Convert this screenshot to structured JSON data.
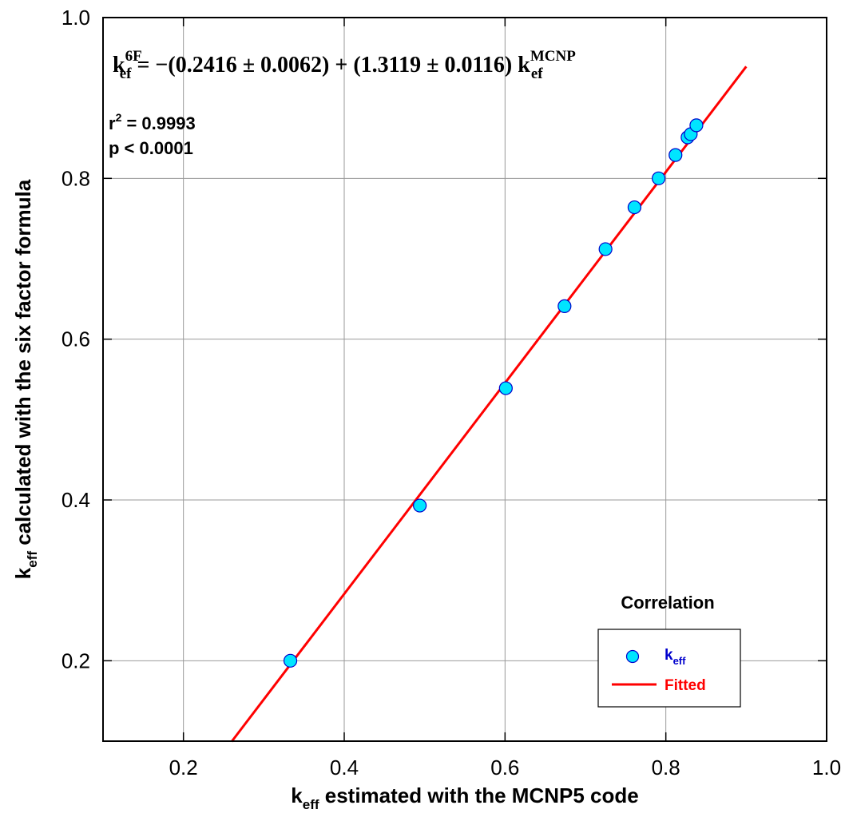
{
  "chart_data": {
    "type": "scatter",
    "xlabel": {
      "main": "k",
      "sub": "eff",
      "rest": " estimated with the MCNP5 code"
    },
    "ylabel": {
      "main": "k",
      "sub": "eff",
      "rest": " calculated with the six factor formula"
    },
    "xlim": [
      0.1,
      1.0
    ],
    "ylim": [
      0.1,
      1.0
    ],
    "xticks": [
      0.2,
      0.4,
      0.6,
      0.8,
      1.0
    ],
    "xtick_labels": [
      "0.2",
      "0.4",
      "0.6",
      "0.8",
      "1.0"
    ],
    "yticks": [
      0.2,
      0.4,
      0.6,
      0.8,
      1.0
    ],
    "ytick_labels": [
      "0.2",
      "0.4",
      "0.6",
      "0.8",
      "1.0"
    ],
    "grid": true,
    "series": [
      {
        "name": "keff",
        "kind": "scatter",
        "color": "#00e5ff",
        "edge_color": "#0000cc",
        "x": [
          0.333,
          0.494,
          0.601,
          0.674,
          0.725,
          0.761,
          0.791,
          0.812,
          0.827,
          0.831,
          0.838
        ],
        "y": [
          0.2,
          0.393,
          0.539,
          0.641,
          0.712,
          0.764,
          0.8,
          0.829,
          0.851,
          0.855,
          0.866
        ]
      },
      {
        "name": "Fitted",
        "kind": "line",
        "color": "#ff0000",
        "intercept": -0.2416,
        "slope": 1.3119,
        "x_range": [
          0.26,
          0.9
        ]
      }
    ],
    "equation": {
      "lhs_main": "k",
      "lhs_sup": "6F",
      "lhs_sub": "ef",
      "middle": " = −(0.2416 ± 0.0062) + (1.3119 ± 0.0116) k",
      "rhs_sup": "MCNP",
      "rhs_sub": "ef"
    },
    "stats": {
      "r2_prefix": "r",
      "r2_sup": "2",
      "r2_value": " = 0.9993",
      "p_text": "p < 0.0001"
    },
    "legend": {
      "title": "Correlation",
      "placement": "bottom-right",
      "entries": [
        {
          "main": "k",
          "sub": "eff",
          "color": "#0000cc"
        },
        {
          "main": "Fitted",
          "sub": "",
          "color": "#ff0000"
        }
      ]
    }
  }
}
